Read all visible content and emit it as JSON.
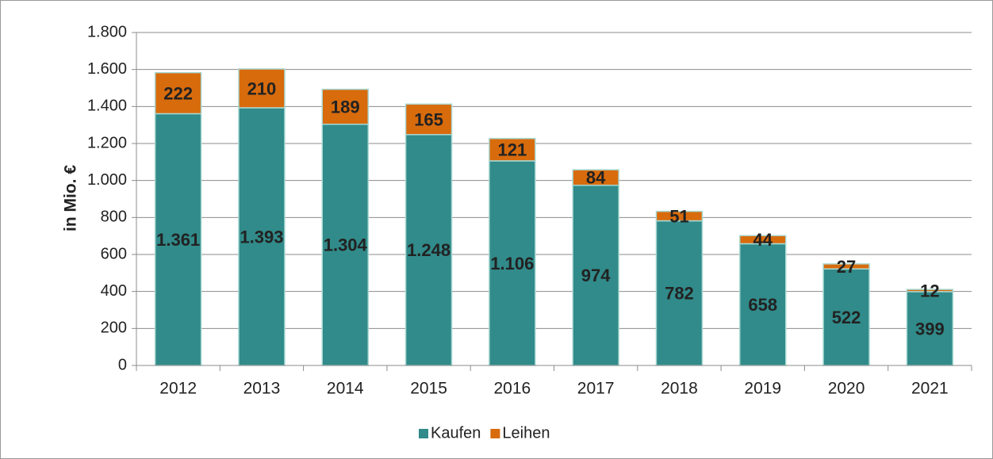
{
  "chart_data": {
    "type": "stacked_bar",
    "y_label": "in Mio. €",
    "categories": [
      "2012",
      "2013",
      "2014",
      "2015",
      "2016",
      "2017",
      "2018",
      "2019",
      "2020",
      "2021"
    ],
    "series": [
      {
        "name": "Kaufen",
        "color": "#318b8a",
        "values": [
          1361,
          1393,
          1304,
          1248,
          1106,
          974,
          782,
          658,
          522,
          399
        ],
        "value_labels": [
          "1.361",
          "1.393",
          "1.304",
          "1.248",
          "1.106",
          "974",
          "782",
          "658",
          "522",
          "399"
        ]
      },
      {
        "name": "Leihen",
        "color": "#d86b0c",
        "values": [
          222,
          210,
          189,
          165,
          121,
          84,
          51,
          44,
          27,
          12
        ]
      }
    ],
    "ylim": [
      0,
      1800
    ],
    "yticks": [
      0,
      200,
      400,
      600,
      800,
      {
        "value": 1000,
        "label": "1.000"
      },
      {
        "value": 1200,
        "label": "1.200"
      },
      {
        "value": 1400,
        "label": "1.400"
      },
      {
        "value": 1600,
        "label": "1.600"
      },
      {
        "value": 1800,
        "label": "1.800"
      }
    ],
    "grid": true,
    "legend": "bottom"
  }
}
